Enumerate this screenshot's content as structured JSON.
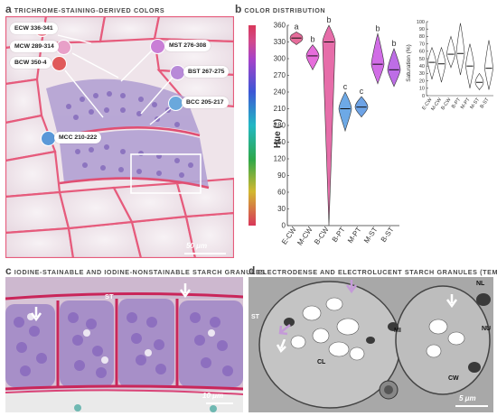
{
  "panels": {
    "a": {
      "letter": "a",
      "title": "TRICHROME-STAINING-DERIVED COLORS",
      "scale": "50 μm",
      "callouts": [
        {
          "label": "ECW 336-341",
          "color": "#f08a9a"
        },
        {
          "label": "MCW 289-314",
          "color": "#e8a0c8"
        },
        {
          "label": "BCW 350-4",
          "color": "#e05a5a"
        },
        {
          "label": "MST 276-308",
          "color": "#c97fd6"
        },
        {
          "label": "BST 267-275",
          "color": "#b88ad8"
        },
        {
          "label": "BCC 205-217",
          "color": "#6aa8dc"
        },
        {
          "label": "MCC 210-222",
          "color": "#5a98d8"
        }
      ]
    },
    "b": {
      "letter": "b",
      "title": "COLOR DISTRIBUTION"
    },
    "c": {
      "letter": "c",
      "title": "IODINE-STAINABLE AND IODINE-NONSTAINABLE STARCH GRANULES",
      "scale": "10 μm",
      "labels": {
        "st": "ST"
      }
    },
    "d": {
      "letter": "d",
      "title": "ELECTRODENSE AND ELECTROLUCENT STARCH GRANULES (TEM)",
      "scale": "5 μm",
      "labels": {
        "st": "ST",
        "nl": "NL",
        "mi": "MI",
        "nu": "NU",
        "cl": "CL",
        "cw": "CW"
      }
    }
  },
  "chart_data": [
    {
      "type": "violin",
      "ylabel": "Hue (°)",
      "ylim": [
        0,
        360
      ],
      "yticks": [
        0,
        30,
        60,
        90,
        120,
        150,
        180,
        210,
        240,
        270,
        300,
        330,
        360
      ],
      "categories": [
        "E-CW",
        "M-CW",
        "B-CW",
        "B-PT",
        "M-PT",
        "M-ST",
        "B-ST"
      ],
      "medians": [
        337,
        305,
        330,
        210,
        213,
        290,
        280
      ],
      "ranges": [
        [
          325,
          348
        ],
        [
          280,
          325
        ],
        [
          0,
          360
        ],
        [
          170,
          240
        ],
        [
          195,
          232
        ],
        [
          255,
          345
        ],
        [
          250,
          318
        ]
      ],
      "letters": [
        "a",
        "b",
        "b",
        "c",
        "c",
        "b",
        "b"
      ]
    },
    {
      "type": "violin",
      "ylabel": "Saturation (%)",
      "ylim": [
        0,
        100
      ],
      "yticks": [
        0,
        10,
        20,
        30,
        40,
        50,
        60,
        70,
        80,
        90,
        100
      ],
      "categories": [
        "E-CW",
        "M-CW",
        "B-CW",
        "B-PT",
        "M-PT",
        "M-ST",
        "B-ST"
      ],
      "medians": [
        45,
        43,
        56,
        57,
        40,
        18,
        37
      ],
      "ranges": [
        [
          22,
          65
        ],
        [
          18,
          65
        ],
        [
          38,
          80
        ],
        [
          28,
          98
        ],
        [
          10,
          70
        ],
        [
          8,
          30
        ],
        [
          8,
          75
        ]
      ]
    }
  ],
  "colors": {
    "stain_pink": "#e8a3b5",
    "stain_purple": "#9a84c8",
    "tem_gray": "#b4b4b4"
  }
}
